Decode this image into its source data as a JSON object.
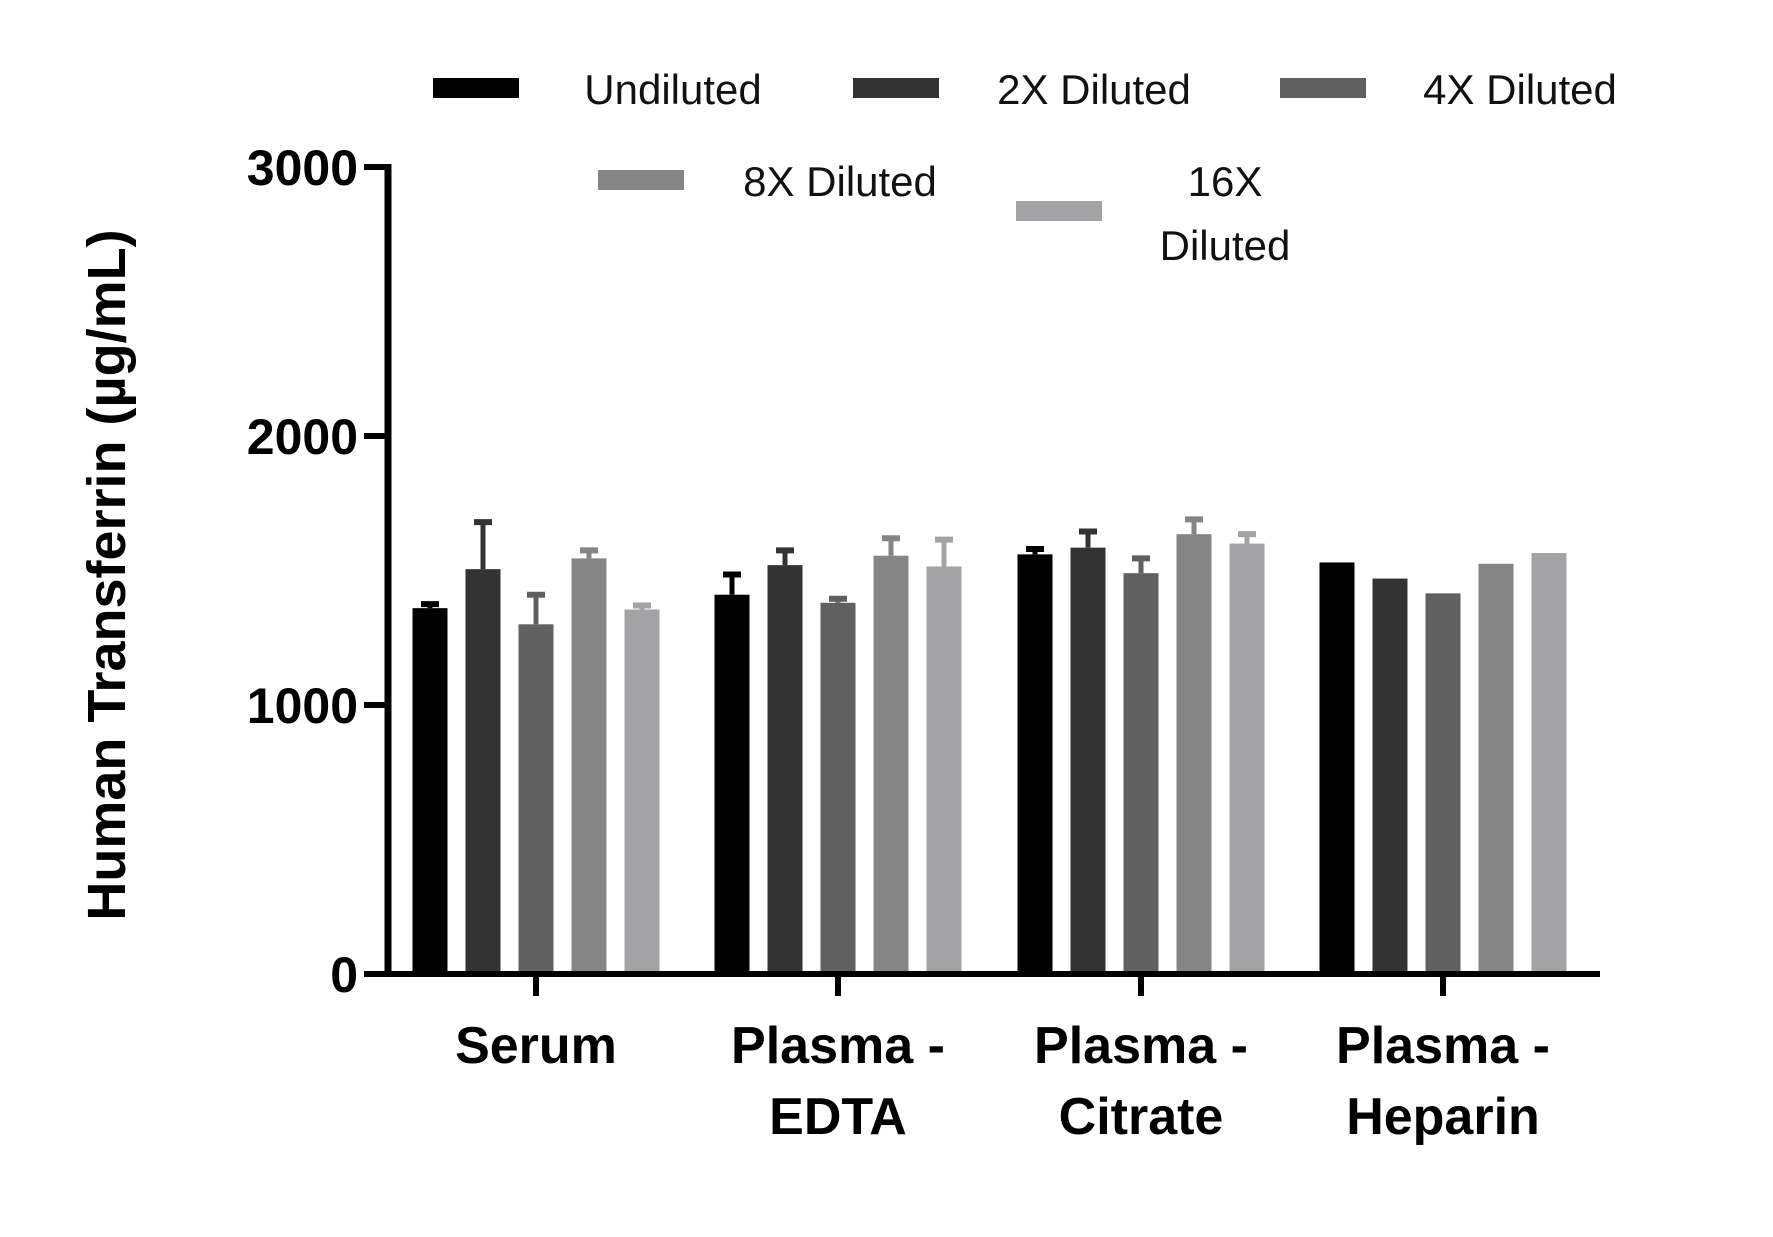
{
  "chart_data": {
    "type": "bar",
    "ylabel": "Human Transferrin (µg/mL)",
    "xlabel": "",
    "ylim": [
      0,
      3000
    ],
    "yticks": [
      0,
      1000,
      2000,
      3000
    ],
    "legend_placement": "top",
    "categories": [
      [
        "Serum"
      ],
      [
        "Plasma -",
        "EDTA"
      ],
      [
        "Plasma -",
        "Citrate"
      ],
      [
        "Plasma -",
        "Heparin"
      ]
    ],
    "series": [
      {
        "name": [
          "Undiluted"
        ],
        "color": "#000000",
        "values": [
          1360,
          1410,
          1560,
          1530
        ],
        "errors": [
          15,
          75,
          20,
          0
        ]
      },
      {
        "name": [
          "2X Diluted"
        ],
        "color": "#333333",
        "values": [
          1505,
          1520,
          1585,
          1470
        ],
        "errors": [
          175,
          55,
          60,
          0
        ]
      },
      {
        "name": [
          "4X Diluted"
        ],
        "color": "#606060",
        "values": [
          1300,
          1380,
          1490,
          1415
        ],
        "errors": [
          110,
          15,
          55,
          0
        ]
      },
      {
        "name": [
          "8X Diluted"
        ],
        "color": "#858585",
        "values": [
          1545,
          1555,
          1635,
          1525
        ],
        "errors": [
          30,
          65,
          55,
          0
        ]
      },
      {
        "name": [
          "16X",
          "Diluted"
        ],
        "color": "#a3a3a6",
        "values": [
          1355,
          1515,
          1600,
          1565
        ],
        "errors": [
          15,
          100,
          35,
          0
        ]
      }
    ]
  }
}
